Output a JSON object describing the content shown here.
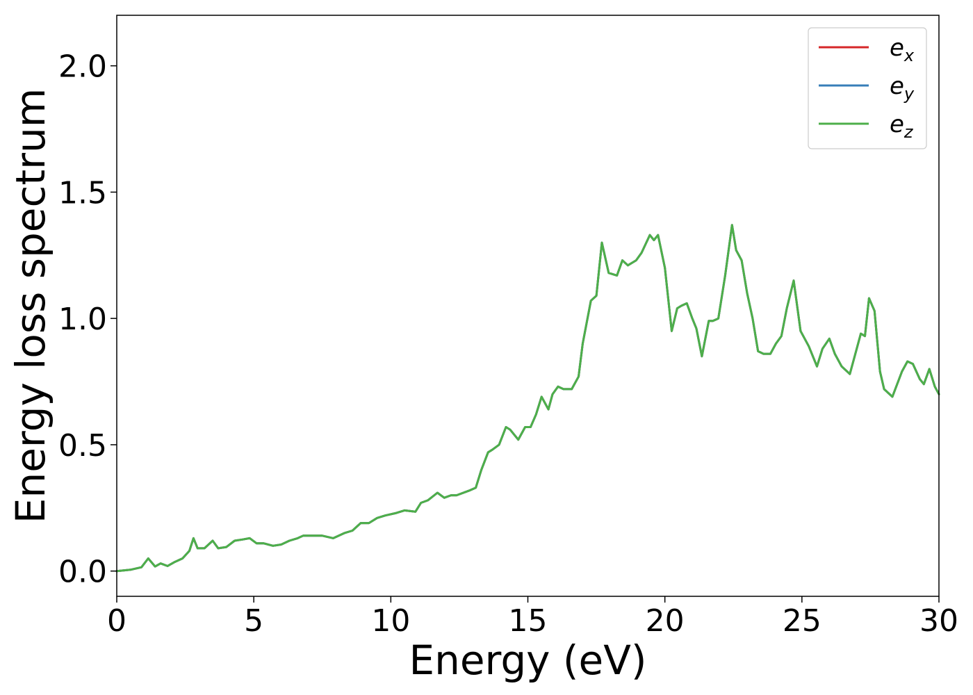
{
  "chart_data": {
    "type": "line",
    "xlabel": "Energy (eV)",
    "ylabel": "Energy loss spectrum",
    "xlim": [
      0,
      30
    ],
    "ylim": [
      -0.1,
      2.2
    ],
    "xticks": [
      0,
      5,
      10,
      15,
      20,
      25,
      30
    ],
    "xtick_labels": [
      "0",
      "5",
      "10",
      "15",
      "20",
      "25",
      "30"
    ],
    "yticks": [
      0.0,
      0.5,
      1.0,
      1.5,
      2.0
    ],
    "ytick_labels": [
      "0.0",
      "0.5",
      "1.0",
      "1.5",
      "2.0"
    ],
    "grid": false,
    "legend_position": "top-right",
    "x": [
      0,
      0.5,
      0.9,
      1.15,
      1.4,
      1.6,
      1.85,
      2.1,
      2.4,
      2.65,
      2.8,
      2.95,
      3.2,
      3.5,
      3.7,
      4.0,
      4.3,
      4.6,
      4.85,
      5.1,
      5.35,
      5.7,
      6.0,
      6.3,
      6.6,
      6.8,
      7.2,
      7.5,
      7.9,
      8.3,
      8.6,
      8.9,
      9.2,
      9.5,
      9.8,
      10.2,
      10.5,
      10.9,
      11.1,
      11.35,
      11.7,
      11.95,
      12.2,
      12.4,
      12.9,
      13.1,
      13.3,
      13.55,
      13.7,
      13.95,
      14.2,
      14.35,
      14.65,
      14.9,
      15.1,
      15.3,
      15.5,
      15.75,
      15.9,
      16.1,
      16.3,
      16.6,
      16.85,
      17.0,
      17.3,
      17.5,
      17.7,
      17.95,
      18.25,
      18.45,
      18.65,
      18.95,
      19.15,
      19.45,
      19.6,
      19.75,
      20.0,
      20.25,
      20.45,
      20.6,
      20.8,
      21.0,
      21.15,
      21.35,
      21.6,
      21.75,
      21.95,
      22.2,
      22.45,
      22.6,
      22.8,
      23.0,
      23.2,
      23.4,
      23.6,
      23.85,
      24.05,
      24.25,
      24.45,
      24.7,
      24.95,
      25.25,
      25.55,
      25.75,
      26.0,
      26.2,
      26.45,
      26.75,
      26.95,
      27.15,
      27.3,
      27.45,
      27.65,
      27.85,
      28.0,
      28.3,
      28.65,
      28.85,
      29.05,
      29.3,
      29.45,
      29.65,
      29.85,
      30.0
    ],
    "series": [
      {
        "name": "e_x",
        "label_base": "e",
        "label_sub": "x",
        "color": "#d62728",
        "values": [
          0.0,
          0.005,
          0.015,
          0.05,
          0.018,
          0.03,
          0.02,
          0.035,
          0.05,
          0.08,
          0.13,
          0.09,
          0.09,
          0.12,
          0.09,
          0.095,
          0.12,
          0.125,
          0.13,
          0.11,
          0.11,
          0.1,
          0.105,
          0.12,
          0.13,
          0.14,
          0.14,
          0.14,
          0.13,
          0.15,
          0.16,
          0.19,
          0.19,
          0.21,
          0.22,
          0.23,
          0.24,
          0.235,
          0.27,
          0.28,
          0.31,
          0.29,
          0.3,
          0.3,
          0.32,
          0.33,
          0.4,
          0.47,
          0.48,
          0.5,
          0.57,
          0.56,
          0.52,
          0.57,
          0.57,
          0.62,
          0.69,
          0.64,
          0.7,
          0.73,
          0.72,
          0.72,
          0.77,
          0.9,
          1.07,
          1.09,
          1.3,
          1.18,
          1.17,
          1.23,
          1.21,
          1.23,
          1.26,
          1.33,
          1.31,
          1.33,
          1.2,
          0.95,
          1.04,
          1.05,
          1.06,
          1.0,
          0.96,
          0.85,
          0.99,
          0.99,
          1.0,
          1.17,
          1.37,
          1.27,
          1.23,
          1.1,
          1.0,
          0.87,
          0.86,
          0.86,
          0.9,
          0.93,
          1.04,
          1.15,
          0.95,
          0.89,
          0.81,
          0.88,
          0.92,
          0.86,
          0.81,
          0.78,
          0.86,
          0.94,
          0.93,
          1.08,
          1.03,
          0.79,
          0.72,
          0.69,
          0.79,
          0.83,
          0.82,
          0.76,
          0.74,
          0.8,
          0.73,
          0.7
        ]
      },
      {
        "name": "e_y",
        "label_base": "e",
        "label_sub": "y",
        "color": "#377eb8",
        "values": [
          0.0,
          0.005,
          0.015,
          0.05,
          0.018,
          0.03,
          0.02,
          0.035,
          0.05,
          0.08,
          0.13,
          0.09,
          0.09,
          0.12,
          0.09,
          0.095,
          0.12,
          0.125,
          0.13,
          0.11,
          0.11,
          0.1,
          0.105,
          0.12,
          0.13,
          0.14,
          0.14,
          0.14,
          0.13,
          0.15,
          0.16,
          0.19,
          0.19,
          0.21,
          0.22,
          0.23,
          0.24,
          0.235,
          0.27,
          0.28,
          0.31,
          0.29,
          0.3,
          0.3,
          0.32,
          0.33,
          0.4,
          0.47,
          0.48,
          0.5,
          0.57,
          0.56,
          0.52,
          0.57,
          0.57,
          0.62,
          0.69,
          0.64,
          0.7,
          0.73,
          0.72,
          0.72,
          0.77,
          0.9,
          1.07,
          1.09,
          1.3,
          1.18,
          1.17,
          1.23,
          1.21,
          1.23,
          1.26,
          1.33,
          1.31,
          1.33,
          1.2,
          0.95,
          1.04,
          1.05,
          1.06,
          1.0,
          0.96,
          0.85,
          0.99,
          0.99,
          1.0,
          1.17,
          1.37,
          1.27,
          1.23,
          1.1,
          1.0,
          0.87,
          0.86,
          0.86,
          0.9,
          0.93,
          1.04,
          1.15,
          0.95,
          0.89,
          0.81,
          0.88,
          0.92,
          0.86,
          0.81,
          0.78,
          0.86,
          0.94,
          0.93,
          1.08,
          1.03,
          0.79,
          0.72,
          0.69,
          0.79,
          0.83,
          0.82,
          0.76,
          0.74,
          0.8,
          0.73,
          0.7
        ]
      },
      {
        "name": "e_z",
        "label_base": "e",
        "label_sub": "z",
        "color": "#4daf4a",
        "values": [
          0.0,
          0.005,
          0.015,
          0.05,
          0.018,
          0.03,
          0.02,
          0.035,
          0.05,
          0.08,
          0.13,
          0.09,
          0.09,
          0.12,
          0.09,
          0.095,
          0.12,
          0.125,
          0.13,
          0.11,
          0.11,
          0.1,
          0.105,
          0.12,
          0.13,
          0.14,
          0.14,
          0.14,
          0.13,
          0.15,
          0.16,
          0.19,
          0.19,
          0.21,
          0.22,
          0.23,
          0.24,
          0.235,
          0.27,
          0.28,
          0.31,
          0.29,
          0.3,
          0.3,
          0.32,
          0.33,
          0.4,
          0.47,
          0.48,
          0.5,
          0.57,
          0.56,
          0.52,
          0.57,
          0.57,
          0.62,
          0.69,
          0.64,
          0.7,
          0.73,
          0.72,
          0.72,
          0.77,
          0.9,
          1.07,
          1.09,
          1.3,
          1.18,
          1.17,
          1.23,
          1.21,
          1.23,
          1.26,
          1.33,
          1.31,
          1.33,
          1.2,
          0.95,
          1.04,
          1.05,
          1.06,
          1.0,
          0.96,
          0.85,
          0.99,
          0.99,
          1.0,
          1.17,
          1.37,
          1.27,
          1.23,
          1.1,
          1.0,
          0.87,
          0.86,
          0.86,
          0.9,
          0.93,
          1.04,
          1.15,
          0.95,
          0.89,
          0.81,
          0.88,
          0.92,
          0.86,
          0.81,
          0.78,
          0.86,
          0.94,
          0.93,
          1.08,
          1.03,
          0.79,
          0.72,
          0.69,
          0.79,
          0.83,
          0.82,
          0.76,
          0.74,
          0.8,
          0.73,
          0.7
        ]
      }
    ]
  }
}
